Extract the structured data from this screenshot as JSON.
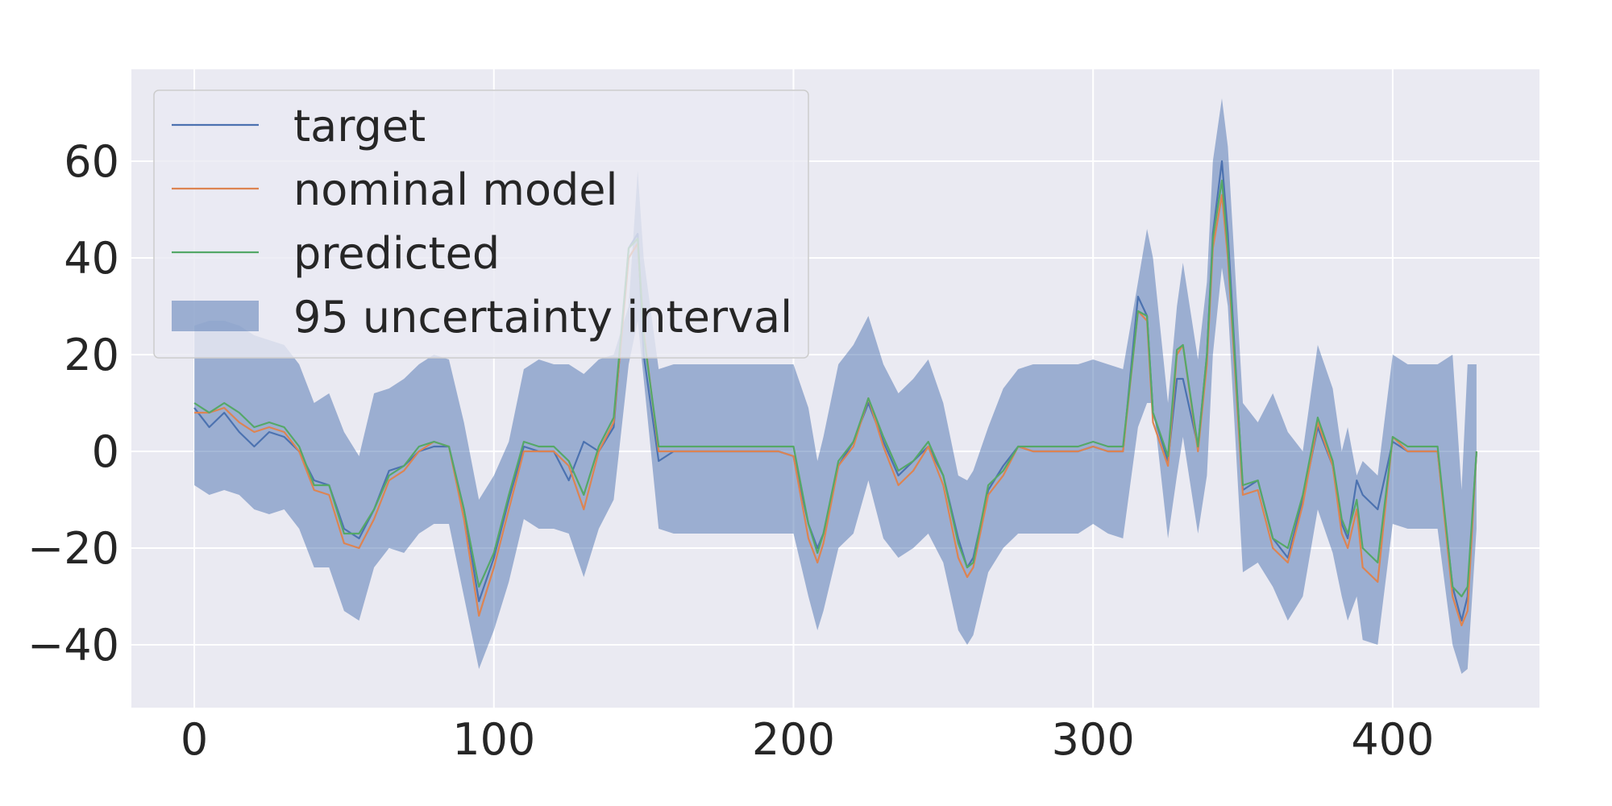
{
  "chart_data": {
    "type": "line",
    "title": "",
    "xlabel": "",
    "ylabel": "",
    "xlim": [
      -21,
      449
    ],
    "ylim": [
      -53,
      79
    ],
    "x_ticks": [
      0,
      100,
      200,
      300,
      400
    ],
    "y_ticks": [
      -40,
      -20,
      0,
      20,
      40,
      60
    ],
    "x_tick_labels": [
      "0",
      "100",
      "200",
      "300",
      "400"
    ],
    "y_tick_labels": [
      "−40",
      "−20",
      "0",
      "20",
      "40",
      "60"
    ],
    "grid": true,
    "legend_position": "upper-left",
    "legend": [
      "target",
      "nominal model",
      "predicted",
      "95 uncertainty interval"
    ],
    "colors": {
      "background": "#eaeaf2",
      "grid": "#ffffff",
      "target": "#4c72b0",
      "nominal": "#dd8452",
      "predicted": "#55a868",
      "band": "#4c72b0"
    },
    "x": [
      0,
      5,
      10,
      15,
      20,
      25,
      30,
      35,
      40,
      45,
      50,
      55,
      60,
      65,
      70,
      75,
      80,
      85,
      90,
      95,
      100,
      105,
      110,
      115,
      120,
      125,
      130,
      135,
      140,
      145,
      148,
      150,
      155,
      160,
      165,
      170,
      175,
      180,
      185,
      190,
      195,
      200,
      205,
      208,
      210,
      215,
      220,
      225,
      230,
      235,
      240,
      245,
      250,
      255,
      258,
      260,
      265,
      270,
      275,
      280,
      285,
      290,
      295,
      300,
      305,
      310,
      315,
      318,
      320,
      325,
      328,
      330,
      335,
      338,
      340,
      343,
      345,
      350,
      355,
      360,
      365,
      370,
      375,
      380,
      383,
      385,
      388,
      390,
      395,
      400,
      405,
      410,
      415,
      420,
      423,
      425,
      428
    ],
    "series": [
      {
        "name": "target",
        "values": [
          9,
          5,
          8,
          4,
          1,
          4,
          3,
          0,
          -6,
          -7,
          -16,
          -18,
          -12,
          -4,
          -3,
          0,
          1,
          1,
          -12,
          -31,
          -22,
          -10,
          1,
          0,
          0,
          -6,
          2,
          0,
          5,
          42,
          45,
          20,
          -2,
          0,
          0,
          0,
          0,
          0,
          0,
          0,
          0,
          -1,
          -15,
          -20,
          -17,
          -3,
          2,
          10,
          2,
          -5,
          -2,
          1,
          -5,
          -18,
          -24,
          -22,
          -8,
          -3,
          1,
          0,
          0,
          0,
          0,
          1,
          0,
          0,
          32,
          28,
          8,
          -2,
          15,
          15,
          1,
          20,
          45,
          60,
          45,
          -8,
          -6,
          -18,
          -22,
          -10,
          5,
          -3,
          -15,
          -18,
          -6,
          -9,
          -12,
          2,
          0,
          0,
          0,
          -28,
          -35,
          -30,
          0
        ],
        "nominal": false
      },
      {
        "name": "nominal model",
        "values": [
          8,
          8,
          9,
          6,
          4,
          5,
          4,
          0,
          -8,
          -9,
          -19,
          -20,
          -14,
          -6,
          -4,
          0,
          2,
          1,
          -14,
          -34,
          -24,
          -12,
          0,
          0,
          0,
          -3,
          -12,
          0,
          6,
          40,
          43,
          25,
          0,
          0,
          0,
          0,
          0,
          0,
          0,
          0,
          0,
          -1,
          -18,
          -23,
          -19,
          -3,
          1,
          11,
          1,
          -7,
          -4,
          1,
          -7,
          -22,
          -26,
          -24,
          -9,
          -5,
          1,
          0,
          0,
          0,
          0,
          1,
          0,
          0,
          29,
          27,
          6,
          -3,
          20,
          22,
          0,
          18,
          42,
          53,
          40,
          -9,
          -8,
          -20,
          -23,
          -11,
          6,
          -3,
          -17,
          -20,
          -12,
          -24,
          -27,
          3,
          0,
          0,
          0,
          -30,
          -36,
          -33,
          0
        ]
      },
      {
        "name": "predicted",
        "values": [
          10,
          8,
          10,
          8,
          5,
          6,
          5,
          1,
          -7,
          -7,
          -17,
          -17,
          -12,
          -5,
          -3,
          1,
          2,
          1,
          -12,
          -28,
          -21,
          -9,
          2,
          1,
          1,
          -2,
          -9,
          1,
          7,
          42,
          44,
          24,
          1,
          1,
          1,
          1,
          1,
          1,
          1,
          1,
          1,
          1,
          -15,
          -21,
          -17,
          -2,
          2,
          11,
          3,
          -4,
          -2,
          2,
          -5,
          -19,
          -24,
          -23,
          -7,
          -4,
          1,
          1,
          1,
          1,
          1,
          2,
          1,
          1,
          29,
          28,
          8,
          -1,
          21,
          22,
          1,
          20,
          44,
          56,
          42,
          -7,
          -6,
          -18,
          -20,
          -9,
          7,
          -2,
          -14,
          -17,
          -10,
          -20,
          -23,
          3,
          1,
          1,
          1,
          -28,
          -30,
          -28,
          0
        ]
      }
    ],
    "band": {
      "name": "95 uncertainty interval",
      "upper": [
        26,
        27,
        27,
        26,
        24,
        23,
        22,
        18,
        10,
        12,
        4,
        -1,
        12,
        13,
        15,
        18,
        20,
        19,
        6,
        -10,
        -5,
        2,
        17,
        19,
        18,
        18,
        16,
        19,
        20,
        30,
        58,
        40,
        17,
        18,
        18,
        18,
        18,
        18,
        18,
        18,
        18,
        18,
        9,
        -2,
        3,
        18,
        22,
        28,
        18,
        12,
        15,
        19,
        10,
        -5,
        -6,
        -4,
        5,
        13,
        17,
        18,
        18,
        18,
        18,
        19,
        18,
        17,
        35,
        46,
        40,
        10,
        30,
        39,
        19,
        35,
        60,
        73,
        63,
        10,
        6,
        12,
        4,
        0,
        22,
        13,
        0,
        5,
        -5,
        -2,
        -5,
        20,
        18,
        18,
        18,
        20,
        -8,
        18,
        18
      ],
      "lower": [
        -7,
        -9,
        -8,
        -9,
        -12,
        -13,
        -12,
        -16,
        -24,
        -24,
        -33,
        -35,
        -24,
        -20,
        -21,
        -17,
        -15,
        -15,
        -30,
        -45,
        -37,
        -27,
        -14,
        -16,
        -16,
        -17,
        -26,
        -16,
        -10,
        18,
        27,
        15,
        -16,
        -17,
        -17,
        -17,
        -17,
        -17,
        -17,
        -17,
        -17,
        -17,
        -30,
        -37,
        -33,
        -20,
        -17,
        -6,
        -18,
        -22,
        -20,
        -17,
        -23,
        -37,
        -40,
        -38,
        -25,
        -20,
        -17,
        -17,
        -17,
        -17,
        -17,
        -15,
        -17,
        -18,
        5,
        10,
        10,
        -18,
        -5,
        3,
        -17,
        -5,
        20,
        38,
        30,
        -25,
        -23,
        -28,
        -35,
        -30,
        -12,
        -21,
        -30,
        -35,
        -30,
        -39,
        -40,
        -15,
        -16,
        -16,
        -16,
        -40,
        -46,
        -45,
        -16
      ]
    }
  }
}
